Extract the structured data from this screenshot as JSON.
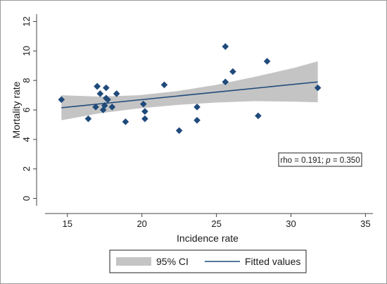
{
  "chart_data": {
    "type": "scatter",
    "xlabel": "Incidence rate",
    "ylabel": "Mortality rate",
    "xlim": [
      13.5,
      35.5
    ],
    "ylim": [
      -0.5,
      12.5
    ],
    "xticks": [
      "15",
      "20",
      "25",
      "30",
      "35"
    ],
    "yticks": [
      "0",
      "2",
      "4",
      "6",
      "8",
      "10",
      "12"
    ],
    "grid": false,
    "points": {
      "x": [
        14.6,
        16.4,
        16.9,
        17.0,
        17.0,
        17.2,
        17.4,
        17.5,
        17.6,
        17.6,
        17.7,
        18.0,
        18.3,
        18.9,
        20.1,
        20.2,
        20.2,
        21.5,
        22.5,
        23.7,
        23.7,
        25.6,
        25.6,
        26.1,
        27.8,
        28.4,
        31.8
      ],
      "y": [
        6.7,
        5.4,
        6.2,
        7.6,
        7.6,
        7.1,
        6.0,
        6.3,
        6.8,
        7.5,
        6.7,
        6.2,
        7.1,
        5.2,
        6.4,
        5.9,
        5.4,
        7.7,
        4.6,
        6.2,
        5.3,
        7.9,
        10.3,
        8.6,
        5.6,
        9.3,
        7.5
      ]
    },
    "series": [
      {
        "name": "95% CI",
        "kind": "band",
        "x": [
          14.6,
          17.2,
          19.8,
          22.4,
          25.0,
          27.6,
          30.2,
          31.8
        ],
        "lower": [
          5.3,
          5.78,
          6.11,
          6.34,
          6.5,
          6.6,
          6.56,
          6.52
        ],
        "upper": [
          7.0,
          6.9,
          7.0,
          7.28,
          7.7,
          8.25,
          8.85,
          9.3
        ]
      },
      {
        "name": "Fitted values",
        "kind": "line",
        "x": [
          14.6,
          31.8
        ],
        "y": [
          6.15,
          7.9
        ]
      }
    ],
    "annotation": "rho = 0.191; p = 0.350",
    "legend_position": "bottom",
    "colors": {
      "marker": "#1f4a7a",
      "line": "#1f4a7a",
      "band": "#c4c4c4",
      "axis": "#444444"
    }
  }
}
